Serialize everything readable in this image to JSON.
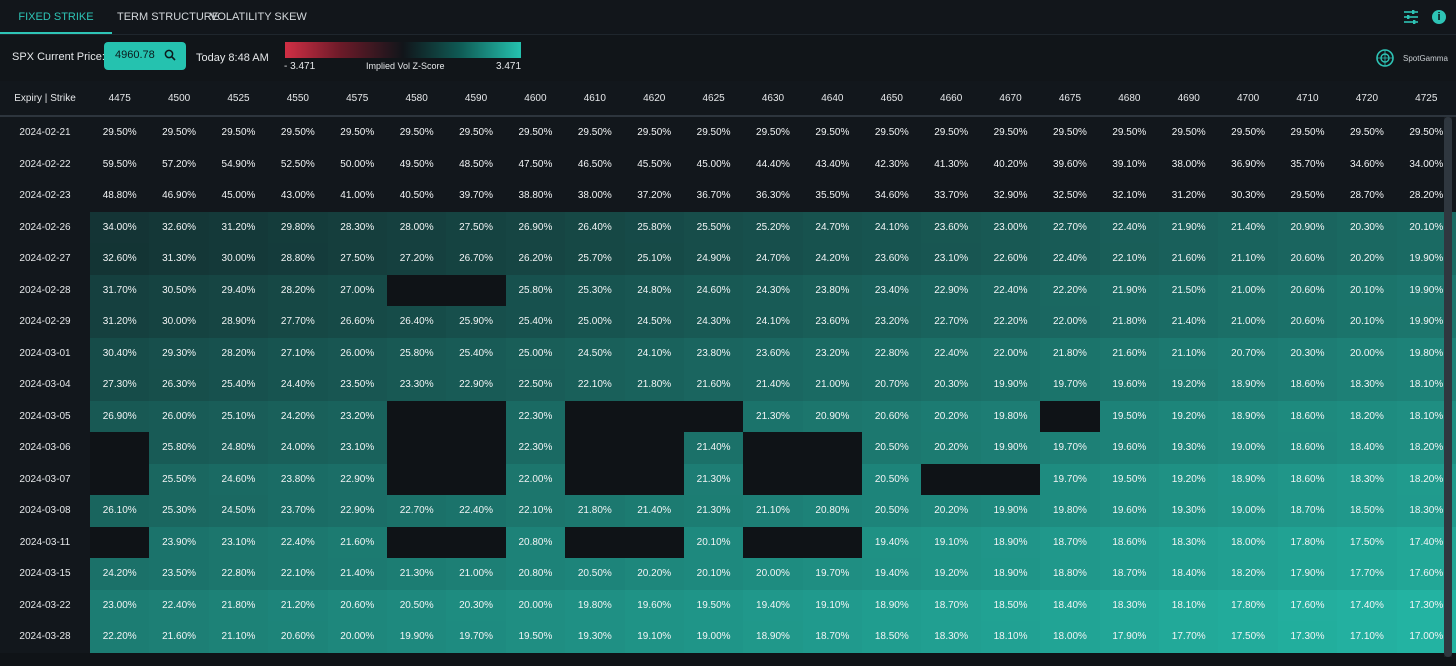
{
  "tabs": [
    {
      "label": "FIXED STRIKE MATRIX",
      "active": true
    },
    {
      "label": "TERM STRUCTURE",
      "active": false
    },
    {
      "label": "VOLATILITY SKEW",
      "active": false
    }
  ],
  "header": {
    "settings_icon": "sliders-icon",
    "info_icon": "info-icon",
    "info_glyph": "i"
  },
  "controls": {
    "price_label": "SPX Current Price:",
    "price_value": "4960.78",
    "time_label": "Today 8:48 AM",
    "legend": {
      "min": "- 3.471",
      "title": "Implied Vol Z-Score",
      "max": "3.471"
    }
  },
  "brand": {
    "name": "SpotGamma"
  },
  "colors": {
    "accent": "#2ec4b6",
    "positive": "#25c2af",
    "negative": "#d12f45"
  },
  "matrix": {
    "corner_label": "Expiry | Strike",
    "strikes": [
      "4475",
      "4500",
      "4525",
      "4550",
      "4575",
      "4580",
      "4590",
      "4600",
      "4610",
      "4620",
      "4625",
      "4630",
      "4640",
      "4650",
      "4660",
      "4670",
      "4675",
      "4680",
      "4690",
      "4700",
      "4710",
      "4720",
      "4725"
    ],
    "rows": [
      {
        "expiry": "2024-02-21",
        "cells": [
          "29.50%",
          "29.50%",
          "29.50%",
          "29.50%",
          "29.50%",
          "29.50%",
          "29.50%",
          "29.50%",
          "29.50%",
          "29.50%",
          "29.50%",
          "29.50%",
          "29.50%",
          "29.50%",
          "29.50%",
          "29.50%",
          "29.50%",
          "29.50%",
          "29.50%",
          "29.50%",
          "29.50%",
          "29.50%",
          "29.50%"
        ]
      },
      {
        "expiry": "2024-02-22",
        "cells": [
          "59.50%",
          "57.20%",
          "54.90%",
          "52.50%",
          "50.00%",
          "49.50%",
          "48.50%",
          "47.50%",
          "46.50%",
          "45.50%",
          "45.00%",
          "44.40%",
          "43.40%",
          "42.30%",
          "41.30%",
          "40.20%",
          "39.60%",
          "39.10%",
          "38.00%",
          "36.90%",
          "35.70%",
          "34.60%",
          "34.00%"
        ]
      },
      {
        "expiry": "2024-02-23",
        "cells": [
          "48.80%",
          "46.90%",
          "45.00%",
          "43.00%",
          "41.00%",
          "40.50%",
          "39.70%",
          "38.80%",
          "38.00%",
          "37.20%",
          "36.70%",
          "36.30%",
          "35.50%",
          "34.60%",
          "33.70%",
          "32.90%",
          "32.50%",
          "32.10%",
          "31.20%",
          "30.30%",
          "29.50%",
          "28.70%",
          "28.20%"
        ]
      },
      {
        "expiry": "2024-02-26",
        "cells": [
          "34.00%",
          "32.60%",
          "31.20%",
          "29.80%",
          "28.30%",
          "28.00%",
          "27.50%",
          "26.90%",
          "26.40%",
          "25.80%",
          "25.50%",
          "25.20%",
          "24.70%",
          "24.10%",
          "23.60%",
          "23.00%",
          "22.70%",
          "22.40%",
          "21.90%",
          "21.40%",
          "20.90%",
          "20.30%",
          "20.10%"
        ]
      },
      {
        "expiry": "2024-02-27",
        "cells": [
          "32.60%",
          "31.30%",
          "30.00%",
          "28.80%",
          "27.50%",
          "27.20%",
          "26.70%",
          "26.20%",
          "25.70%",
          "25.10%",
          "24.90%",
          "24.70%",
          "24.20%",
          "23.60%",
          "23.10%",
          "22.60%",
          "22.40%",
          "22.10%",
          "21.60%",
          "21.10%",
          "20.60%",
          "20.20%",
          "19.90%"
        ]
      },
      {
        "expiry": "2024-02-28",
        "cells": [
          "31.70%",
          "30.50%",
          "29.40%",
          "28.20%",
          "27.00%",
          "",
          "",
          "25.80%",
          "25.30%",
          "24.80%",
          "24.60%",
          "24.30%",
          "23.80%",
          "23.40%",
          "22.90%",
          "22.40%",
          "22.20%",
          "21.90%",
          "21.50%",
          "21.00%",
          "20.60%",
          "20.10%",
          "19.90%"
        ]
      },
      {
        "expiry": "2024-02-29",
        "cells": [
          "31.20%",
          "30.00%",
          "28.90%",
          "27.70%",
          "26.60%",
          "26.40%",
          "25.90%",
          "25.40%",
          "25.00%",
          "24.50%",
          "24.30%",
          "24.10%",
          "23.60%",
          "23.20%",
          "22.70%",
          "22.20%",
          "22.00%",
          "21.80%",
          "21.40%",
          "21.00%",
          "20.60%",
          "20.10%",
          "19.90%"
        ]
      },
      {
        "expiry": "2024-03-01",
        "cells": [
          "30.40%",
          "29.30%",
          "28.20%",
          "27.10%",
          "26.00%",
          "25.80%",
          "25.40%",
          "25.00%",
          "24.50%",
          "24.10%",
          "23.80%",
          "23.60%",
          "23.20%",
          "22.80%",
          "22.40%",
          "22.00%",
          "21.80%",
          "21.60%",
          "21.10%",
          "20.70%",
          "20.30%",
          "20.00%",
          "19.80%"
        ]
      },
      {
        "expiry": "2024-03-04",
        "cells": [
          "27.30%",
          "26.30%",
          "25.40%",
          "24.40%",
          "23.50%",
          "23.30%",
          "22.90%",
          "22.50%",
          "22.10%",
          "21.80%",
          "21.60%",
          "21.40%",
          "21.00%",
          "20.70%",
          "20.30%",
          "19.90%",
          "19.70%",
          "19.60%",
          "19.20%",
          "18.90%",
          "18.60%",
          "18.30%",
          "18.10%"
        ]
      },
      {
        "expiry": "2024-03-05",
        "cells": [
          "26.90%",
          "26.00%",
          "25.10%",
          "24.20%",
          "23.20%",
          "",
          "",
          "22.30%",
          "",
          "",
          "",
          "21.30%",
          "20.90%",
          "20.60%",
          "20.20%",
          "19.80%",
          "",
          "19.50%",
          "19.20%",
          "18.90%",
          "18.60%",
          "18.20%",
          "18.10%"
        ]
      },
      {
        "expiry": "2024-03-06",
        "cells": [
          "",
          "25.80%",
          "24.80%",
          "24.00%",
          "23.10%",
          "",
          "",
          "22.30%",
          "",
          "",
          "21.40%",
          "",
          "",
          "20.50%",
          "20.20%",
          "19.90%",
          "19.70%",
          "19.60%",
          "19.30%",
          "19.00%",
          "18.60%",
          "18.40%",
          "18.20%"
        ]
      },
      {
        "expiry": "2024-03-07",
        "cells": [
          "",
          "25.50%",
          "24.60%",
          "23.80%",
          "22.90%",
          "",
          "",
          "22.00%",
          "",
          "",
          "21.30%",
          "",
          "",
          "20.50%",
          "",
          "",
          "19.70%",
          "19.50%",
          "19.20%",
          "18.90%",
          "18.60%",
          "18.30%",
          "18.20%"
        ]
      },
      {
        "expiry": "2024-03-08",
        "cells": [
          "26.10%",
          "25.30%",
          "24.50%",
          "23.70%",
          "22.90%",
          "22.70%",
          "22.40%",
          "22.10%",
          "21.80%",
          "21.40%",
          "21.30%",
          "21.10%",
          "20.80%",
          "20.50%",
          "20.20%",
          "19.90%",
          "19.80%",
          "19.60%",
          "19.30%",
          "19.00%",
          "18.70%",
          "18.50%",
          "18.30%"
        ]
      },
      {
        "expiry": "2024-03-11",
        "cells": [
          "",
          "23.90%",
          "23.10%",
          "22.40%",
          "21.60%",
          "",
          "",
          "20.80%",
          "",
          "",
          "20.10%",
          "",
          "",
          "19.40%",
          "19.10%",
          "18.90%",
          "18.70%",
          "18.60%",
          "18.30%",
          "18.00%",
          "17.80%",
          "17.50%",
          "17.40%"
        ]
      },
      {
        "expiry": "2024-03-15",
        "cells": [
          "24.20%",
          "23.50%",
          "22.80%",
          "22.10%",
          "21.40%",
          "21.30%",
          "21.00%",
          "20.80%",
          "20.50%",
          "20.20%",
          "20.10%",
          "20.00%",
          "19.70%",
          "19.40%",
          "19.20%",
          "18.90%",
          "18.80%",
          "18.70%",
          "18.40%",
          "18.20%",
          "17.90%",
          "17.70%",
          "17.60%"
        ]
      },
      {
        "expiry": "2024-03-22",
        "cells": [
          "23.00%",
          "22.40%",
          "21.80%",
          "21.20%",
          "20.60%",
          "20.50%",
          "20.30%",
          "20.00%",
          "19.80%",
          "19.60%",
          "19.50%",
          "19.40%",
          "19.10%",
          "18.90%",
          "18.70%",
          "18.50%",
          "18.40%",
          "18.30%",
          "18.10%",
          "17.80%",
          "17.60%",
          "17.40%",
          "17.30%"
        ]
      },
      {
        "expiry": "2024-03-28",
        "cells": [
          "22.20%",
          "21.60%",
          "21.10%",
          "20.60%",
          "20.00%",
          "19.90%",
          "19.70%",
          "19.50%",
          "19.30%",
          "19.10%",
          "19.00%",
          "18.90%",
          "18.70%",
          "18.50%",
          "18.30%",
          "18.10%",
          "18.00%",
          "17.90%",
          "17.70%",
          "17.50%",
          "17.30%",
          "17.10%",
          "17.00%"
        ]
      }
    ]
  }
}
